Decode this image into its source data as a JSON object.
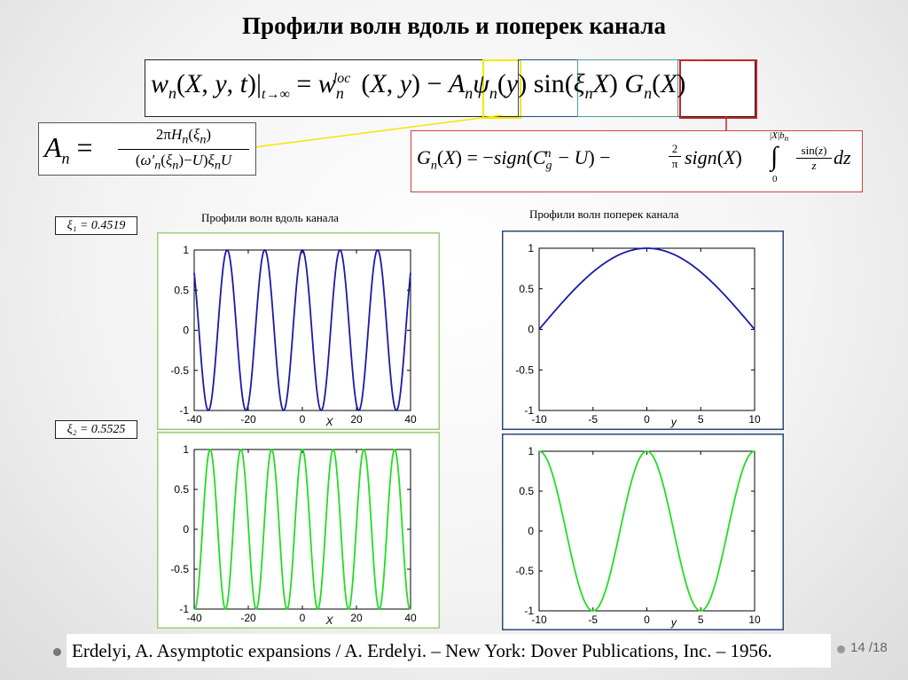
{
  "title": "Профили волн вдоль и поперек канала",
  "xi1": "ξ₁ = 0.4519",
  "xi2": "ξ₂ = 0.5525",
  "caption_along": "Профили волн вдоль канала",
  "caption_across": "Профили волн поперек канала",
  "reference": "Erdelyi, A. Asymptotic expansions / A. Erdelyi. – New York: Dover Publications, Inc. – 1956.",
  "page": "14 /18",
  "colors": {
    "blue": "#1a1aa8",
    "green": "#22dd22",
    "yellow_highlight": "#f5e600",
    "red_highlight": "#cc2222"
  },
  "chart_data": [
    {
      "type": "line",
      "name": "along-xi1",
      "function": "cos(0.4519*x)",
      "x_range": [
        -40,
        40
      ],
      "xlim": [
        -40,
        40
      ],
      "ylim": [
        -1,
        1
      ],
      "xticks": [
        "-40",
        "-20",
        "0",
        "20",
        "40"
      ],
      "yticks": [
        "1",
        "0.5",
        "0",
        "-0.5",
        "-1"
      ],
      "xlabel": "X",
      "ylabel": "",
      "color": "#1a1aa8",
      "frame_color": "#9ccc78"
    },
    {
      "type": "line",
      "name": "along-xi2",
      "function": "cos(0.5525*x)",
      "x_range": [
        -40,
        40
      ],
      "xlim": [
        -40,
        40
      ],
      "ylim": [
        -1,
        1
      ],
      "xticks": [
        "-40",
        "-20",
        "0",
        "20",
        "40"
      ],
      "yticks": [
        "1",
        "0.5",
        "0",
        "-0.5",
        "-1"
      ],
      "xlabel": "X",
      "ylabel": "",
      "color": "#22dd22",
      "frame_color": "#9ccc78"
    },
    {
      "type": "line",
      "name": "across-1",
      "function": "cos(pi*y/20)",
      "x_range": [
        -10,
        10
      ],
      "xlim": [
        -10,
        10
      ],
      "ylim": [
        -1,
        1
      ],
      "xticks": [
        "-10",
        "-5",
        "0",
        "5",
        "10"
      ],
      "yticks": [
        "1",
        "0.5",
        "0",
        "-0.5",
        "-1"
      ],
      "xlabel": "y",
      "ylabel": "",
      "color": "#1a1aa8",
      "frame_color": "#2a4a7a"
    },
    {
      "type": "line",
      "name": "across-2",
      "function": "cos(pi*y/5)",
      "x_range": [
        -10,
        10
      ],
      "xlim": [
        -10,
        10
      ],
      "ylim": [
        -1,
        1
      ],
      "xticks": [
        "-10",
        "-5",
        "0",
        "5",
        "10"
      ],
      "yticks": [
        "1",
        "0.5",
        "0",
        "-0.5",
        "-1"
      ],
      "xlabel": "y",
      "ylabel": "",
      "color": "#22dd22",
      "frame_color": "#2a4a7a"
    }
  ]
}
